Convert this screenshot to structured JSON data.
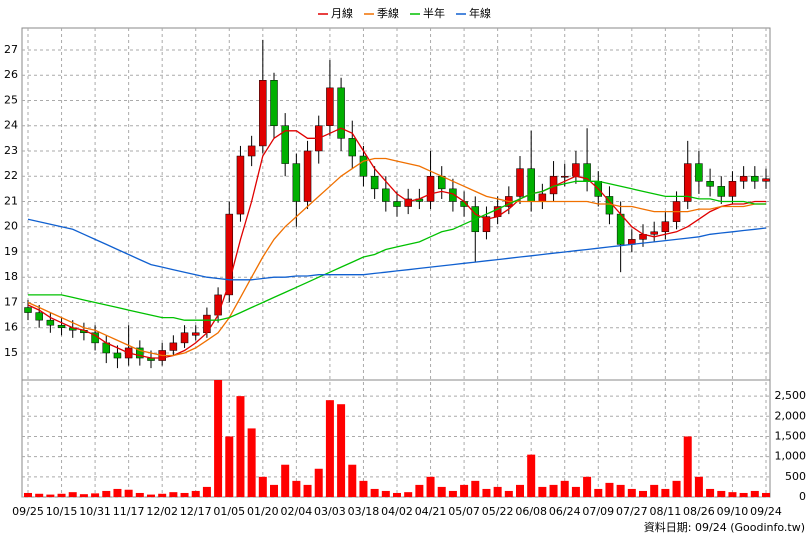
{
  "chart_data": [
    {
      "type": "candlestick",
      "up_color": "#e00000",
      "down_color": "#00b000",
      "ylim": [
        13.93,
        27.87
      ],
      "yticks": [
        15,
        16,
        17,
        18,
        19,
        20,
        21,
        22,
        23,
        24,
        25,
        26,
        27
      ],
      "grid": true,
      "open": [
        16.8,
        16.6,
        16.3,
        16.1,
        16.0,
        15.9,
        15.8,
        15.4,
        15.0,
        14.8,
        15.2,
        14.8,
        14.7,
        15.1,
        15.4,
        15.7,
        15.8,
        16.5,
        17.3,
        20.5,
        22.8,
        23.2,
        25.8,
        24.0,
        22.5,
        21.0,
        23.0,
        24.0,
        25.5,
        23.5,
        22.8,
        22.0,
        21.5,
        21.0,
        20.8,
        21.1,
        21.0,
        22.0,
        21.5,
        21.0,
        20.8,
        19.8,
        20.4,
        20.8,
        21.2,
        22.3,
        21.0,
        21.3,
        22.0,
        22.0,
        22.5,
        21.8,
        21.2,
        20.5,
        19.3,
        19.5,
        19.7,
        19.8,
        20.2,
        21.0,
        22.5,
        21.8,
        21.6,
        21.2,
        21.8,
        22.0,
        21.8
      ],
      "high": [
        17.1,
        16.9,
        16.6,
        16.4,
        16.3,
        16.2,
        16.1,
        15.7,
        15.3,
        16.1,
        15.5,
        15.1,
        15.4,
        15.7,
        16.1,
        16.1,
        16.8,
        17.6,
        21.0,
        23.2,
        23.6,
        27.4,
        26.1,
        24.5,
        22.9,
        23.4,
        24.4,
        26.6,
        25.9,
        24.2,
        23.2,
        22.4,
        22.0,
        21.4,
        21.5,
        21.5,
        23.0,
        22.4,
        21.9,
        21.4,
        21.2,
        20.8,
        21.2,
        21.6,
        22.8,
        23.8,
        21.7,
        22.6,
        22.5,
        23.0,
        23.9,
        22.2,
        21.6,
        21.0,
        19.9,
        20.1,
        20.2,
        20.6,
        21.4,
        23.4,
        23.0,
        22.3,
        22.0,
        22.2,
        22.4,
        22.4,
        22.3
      ],
      "low": [
        16.3,
        16.0,
        15.8,
        15.7,
        15.6,
        15.5,
        15.1,
        14.6,
        14.4,
        14.5,
        14.5,
        14.4,
        14.5,
        14.9,
        15.2,
        15.5,
        15.6,
        16.2,
        17.0,
        20.2,
        22.4,
        22.9,
        23.5,
        22.0,
        20.0,
        20.7,
        22.5,
        23.6,
        23.0,
        22.3,
        21.6,
        21.1,
        20.6,
        20.4,
        20.5,
        20.7,
        20.7,
        21.1,
        20.6,
        20.4,
        18.6,
        19.5,
        20.1,
        20.5,
        20.9,
        20.6,
        20.7,
        21.0,
        21.6,
        21.7,
        21.4,
        20.8,
        20.1,
        18.2,
        19.0,
        19.2,
        19.4,
        19.5,
        19.9,
        20.7,
        21.3,
        21.2,
        20.9,
        20.9,
        21.5,
        21.5,
        21.5
      ],
      "close": [
        16.6,
        16.3,
        16.1,
        16.0,
        15.9,
        15.8,
        15.4,
        15.0,
        14.8,
        15.2,
        14.8,
        14.7,
        15.1,
        15.4,
        15.8,
        15.8,
        16.5,
        17.3,
        20.5,
        22.8,
        23.2,
        25.8,
        24.0,
        22.5,
        21.0,
        23.0,
        24.0,
        25.5,
        23.5,
        22.8,
        22.0,
        21.5,
        21.0,
        20.8,
        21.1,
        21.0,
        22.0,
        21.5,
        21.0,
        20.8,
        19.8,
        20.4,
        20.8,
        21.2,
        22.3,
        21.0,
        21.3,
        22.0,
        22.0,
        22.5,
        21.8,
        21.2,
        20.5,
        19.3,
        19.5,
        19.7,
        19.8,
        20.2,
        21.0,
        22.5,
        21.8,
        21.6,
        21.2,
        21.8,
        22.0,
        21.8,
        21.9
      ],
      "series": [
        {
          "name": "月線",
          "color": "#e00000",
          "values": [
            16.9,
            16.7,
            16.4,
            16.2,
            16.0,
            15.9,
            15.7,
            15.4,
            15.2,
            15.0,
            14.9,
            14.8,
            14.8,
            14.9,
            15.1,
            15.4,
            15.8,
            16.5,
            17.8,
            19.5,
            21.0,
            22.8,
            23.5,
            23.8,
            23.8,
            23.5,
            23.5,
            23.7,
            23.9,
            23.7,
            23.0,
            22.3,
            21.8,
            21.3,
            21.0,
            21.1,
            21.3,
            21.4,
            21.3,
            21.0,
            20.5,
            20.3,
            20.4,
            20.7,
            21.1,
            21.3,
            21.4,
            21.6,
            21.8,
            22.0,
            21.9,
            21.5,
            21.0,
            20.5,
            20.0,
            19.7,
            19.6,
            19.7,
            19.8,
            20.0,
            20.3,
            20.6,
            20.8,
            20.9,
            20.9,
            21.0,
            21.0
          ]
        },
        {
          "name": "季線",
          "color": "#f07000",
          "values": [
            17.0,
            16.8,
            16.6,
            16.4,
            16.2,
            16.0,
            15.9,
            15.7,
            15.5,
            15.3,
            15.1,
            15.0,
            14.9,
            14.9,
            15.0,
            15.2,
            15.5,
            15.8,
            16.4,
            17.2,
            18.0,
            18.8,
            19.5,
            20.0,
            20.4,
            20.8,
            21.2,
            21.6,
            22.0,
            22.3,
            22.6,
            22.7,
            22.7,
            22.6,
            22.5,
            22.4,
            22.2,
            22.0,
            21.8,
            21.6,
            21.4,
            21.2,
            21.1,
            21.0,
            21.0,
            21.0,
            21.0,
            21.0,
            21.0,
            21.0,
            21.0,
            20.9,
            20.9,
            20.8,
            20.8,
            20.7,
            20.6,
            20.6,
            20.6,
            20.6,
            20.7,
            20.7,
            20.8,
            20.8,
            20.8,
            20.9,
            20.9
          ]
        },
        {
          "name": "半年",
          "color": "#00c000",
          "values": [
            17.3,
            17.3,
            17.3,
            17.3,
            17.2,
            17.1,
            17.0,
            16.9,
            16.8,
            16.7,
            16.6,
            16.5,
            16.4,
            16.4,
            16.3,
            16.3,
            16.3,
            16.3,
            16.4,
            16.6,
            16.8,
            17.0,
            17.2,
            17.4,
            17.6,
            17.8,
            18.0,
            18.2,
            18.4,
            18.6,
            18.8,
            18.9,
            19.1,
            19.2,
            19.3,
            19.4,
            19.6,
            19.8,
            19.9,
            20.1,
            20.3,
            20.5,
            20.7,
            20.9,
            21.1,
            21.3,
            21.4,
            21.6,
            21.7,
            21.8,
            21.8,
            21.8,
            21.7,
            21.6,
            21.5,
            21.4,
            21.3,
            21.2,
            21.2,
            21.2,
            21.1,
            21.1,
            21.0,
            21.0,
            21.0,
            20.9,
            20.9
          ]
        },
        {
          "name": "年線",
          "color": "#1060d0",
          "values": [
            20.3,
            20.2,
            20.1,
            20.0,
            19.9,
            19.7,
            19.5,
            19.3,
            19.1,
            18.9,
            18.7,
            18.5,
            18.4,
            18.3,
            18.2,
            18.1,
            18.0,
            17.95,
            17.9,
            17.9,
            17.9,
            17.95,
            18.0,
            18.0,
            18.05,
            18.05,
            18.1,
            18.1,
            18.1,
            18.1,
            18.1,
            18.15,
            18.2,
            18.25,
            18.3,
            18.35,
            18.4,
            18.45,
            18.5,
            18.55,
            18.6,
            18.65,
            18.7,
            18.75,
            18.8,
            18.85,
            18.9,
            18.95,
            19.0,
            19.05,
            19.1,
            19.15,
            19.2,
            19.25,
            19.3,
            19.35,
            19.4,
            19.45,
            19.5,
            19.55,
            19.6,
            19.7,
            19.75,
            19.8,
            19.85,
            19.9,
            19.95
          ]
        }
      ]
    },
    {
      "type": "bar",
      "color": "#ff0000",
      "ylim": [
        0,
        2900
      ],
      "yticks": [
        0,
        500,
        {
          "value": 1000,
          "label": "1,000"
        },
        {
          "value": 1500,
          "label": "1,500"
        },
        {
          "value": 2000,
          "label": "2,000"
        },
        {
          "value": 2500,
          "label": "2,500"
        }
      ],
      "grid": true,
      "categories": [
        "09/25",
        null,
        null,
        "10/15",
        null,
        null,
        "10/31",
        null,
        null,
        "11/17",
        null,
        null,
        "12/02",
        null,
        null,
        "12/17",
        null,
        null,
        "01/05",
        null,
        null,
        "01/20",
        null,
        null,
        "02/04",
        null,
        null,
        "03/03",
        null,
        null,
        "03/18",
        null,
        null,
        "04/02",
        null,
        null,
        "04/21",
        null,
        null,
        "05/07",
        null,
        null,
        "05/22",
        null,
        null,
        "06/08",
        null,
        null,
        "06/24",
        null,
        null,
        "07/09",
        null,
        null,
        "07/27",
        null,
        null,
        "08/11",
        null,
        null,
        "08/26",
        null,
        null,
        "09/10",
        null,
        null,
        "09/24"
      ],
      "values": [
        100,
        80,
        60,
        80,
        120,
        70,
        90,
        150,
        200,
        180,
        100,
        60,
        80,
        120,
        100,
        150,
        250,
        2900,
        1500,
        2500,
        1700,
        500,
        300,
        800,
        400,
        300,
        700,
        2400,
        2300,
        800,
        400,
        200,
        150,
        100,
        120,
        300,
        500,
        250,
        150,
        300,
        400,
        200,
        250,
        150,
        300,
        1050,
        250,
        300,
        400,
        250,
        500,
        200,
        350,
        300,
        200,
        150,
        300,
        200,
        400,
        1500,
        500,
        200,
        150,
        120,
        100,
        150,
        100
      ],
      "note": "資料日期: 09/24  (Goodinfo.tw)"
    }
  ]
}
